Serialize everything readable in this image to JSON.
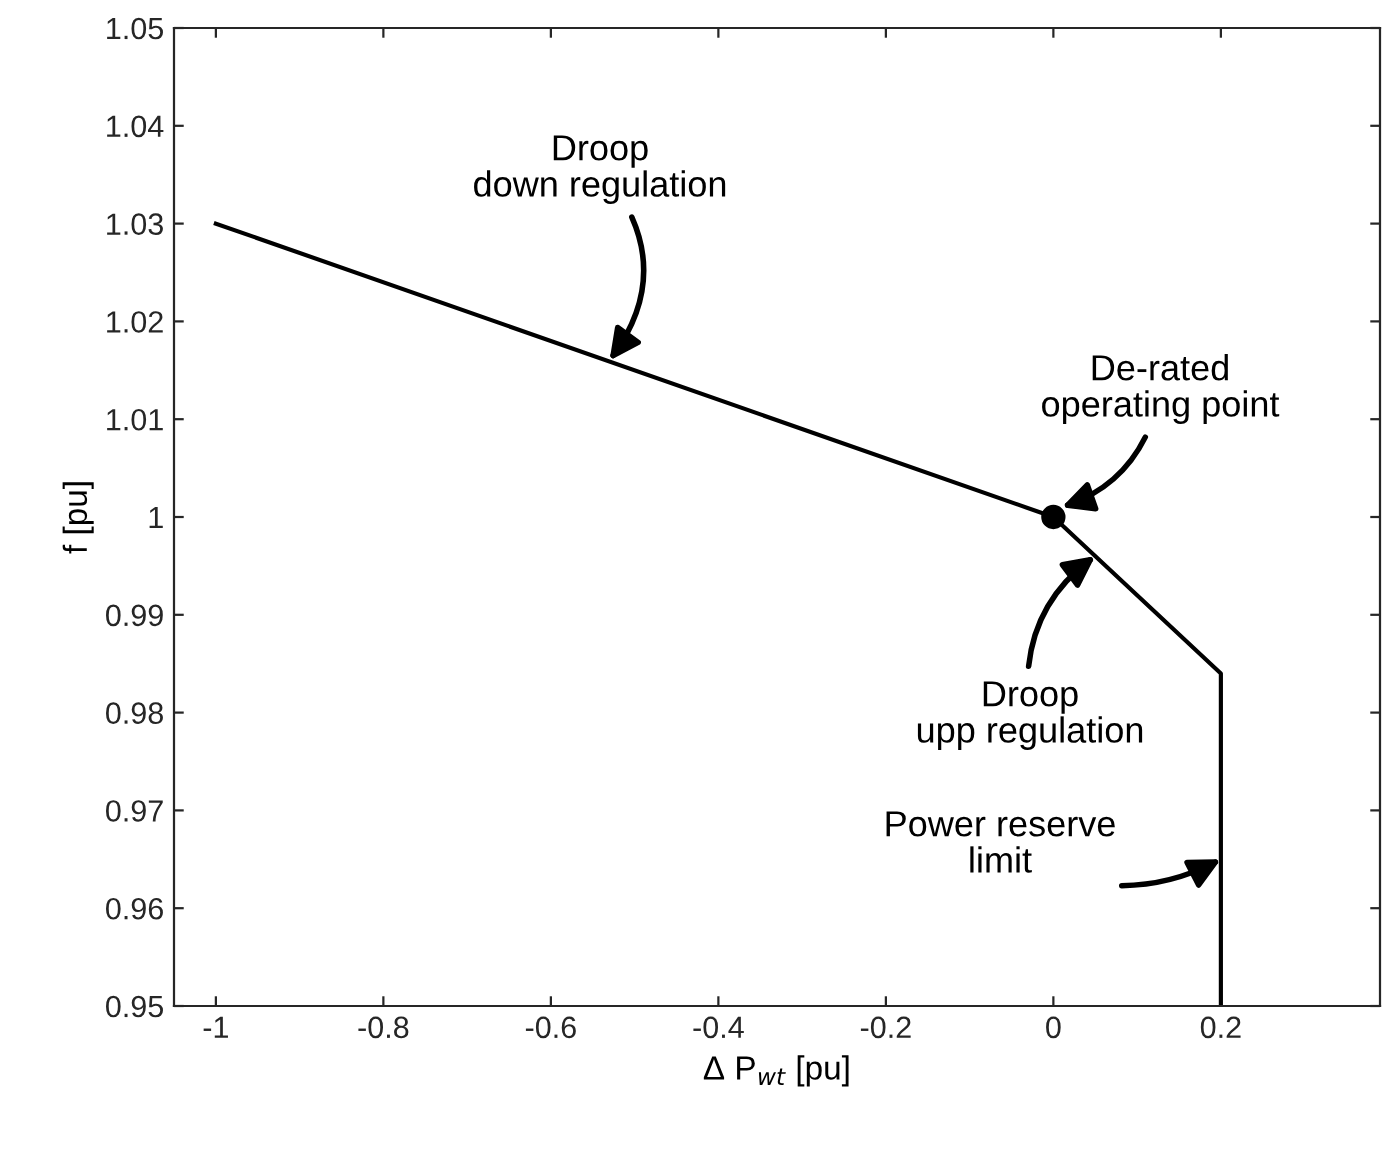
{
  "chart_data": {
    "type": "line",
    "xlabel": "Δ P$_{wt}$ [pu]",
    "ylabel": "f [pu]",
    "xlim": [
      -1.05,
      0.39
    ],
    "ylim": [
      0.95,
      1.05
    ],
    "xticks": [
      {
        "value": -1,
        "label": "-1"
      },
      {
        "value": -0.8,
        "label": "-0.8"
      },
      {
        "value": -0.6,
        "label": "-0.6"
      },
      {
        "value": -0.4,
        "label": "-0.4"
      },
      {
        "value": -0.2,
        "label": "-0.2"
      },
      0,
      0.2
    ],
    "yticks": [
      0.95,
      0.96,
      0.97,
      0.98,
      0.99,
      1,
      1.01,
      1.02,
      1.03,
      1.04,
      1.05
    ],
    "grid": false,
    "series": [
      {
        "color": "#000000",
        "x": [
          -1,
          0,
          0.2,
          0.2
        ],
        "values": [
          1.03,
          1,
          0.984,
          0.95
        ],
        "marker": "none",
        "line_style": "solid"
      },
      {
        "type": "scatter",
        "color": "#000000",
        "x": [
          0
        ],
        "values": [
          1
        ],
        "marker": "circle"
      }
    ],
    "annotations": [
      {
        "text": "Droop\ndown regulation",
        "x": -0.53,
        "y": 1.016
      },
      {
        "text": "De-rated\noperating point",
        "x": 0.01,
        "y": 1.001
      },
      {
        "text": "Droop\nupp regulation",
        "x": 0.05,
        "y": 0.996
      },
      {
        "text": "Power reserve\nlimit",
        "x": 0.2,
        "y": 0.965
      }
    ]
  }
}
